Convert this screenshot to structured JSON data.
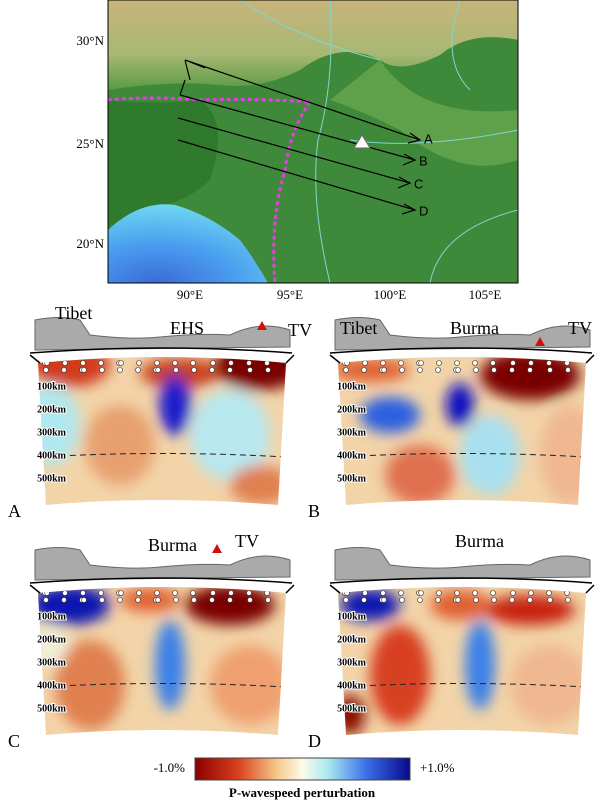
{
  "map": {
    "lat_labels": [
      "30°N",
      "25°N",
      "20°N"
    ],
    "lon_labels": [
      "90°E",
      "95°E",
      "100°E",
      "105°E"
    ],
    "profiles": [
      "A",
      "B",
      "C",
      "D"
    ]
  },
  "panels": [
    {
      "letter": "A",
      "labels": [
        "Tibet",
        "EHS",
        "TV"
      ],
      "depths": [
        "100km",
        "200km",
        "300km",
        "400km",
        "500km"
      ]
    },
    {
      "letter": "B",
      "labels": [
        "Tibet",
        "Burma",
        "TV"
      ],
      "depths": [
        "100km",
        "200km",
        "300km",
        "400km",
        "500km"
      ]
    },
    {
      "letter": "C",
      "labels": [
        "Burma",
        "TV"
      ],
      "depths": [
        "100km",
        "200km",
        "300km",
        "400km",
        "500km"
      ]
    },
    {
      "letter": "D",
      "labels": [
        "Burma"
      ],
      "depths": [
        "100km",
        "200km",
        "300km",
        "400km",
        "500km"
      ]
    }
  ],
  "colorbar": {
    "min": "-1.0%",
    "max": "+1.0%",
    "title": "P-wavespeed perturbation"
  }
}
